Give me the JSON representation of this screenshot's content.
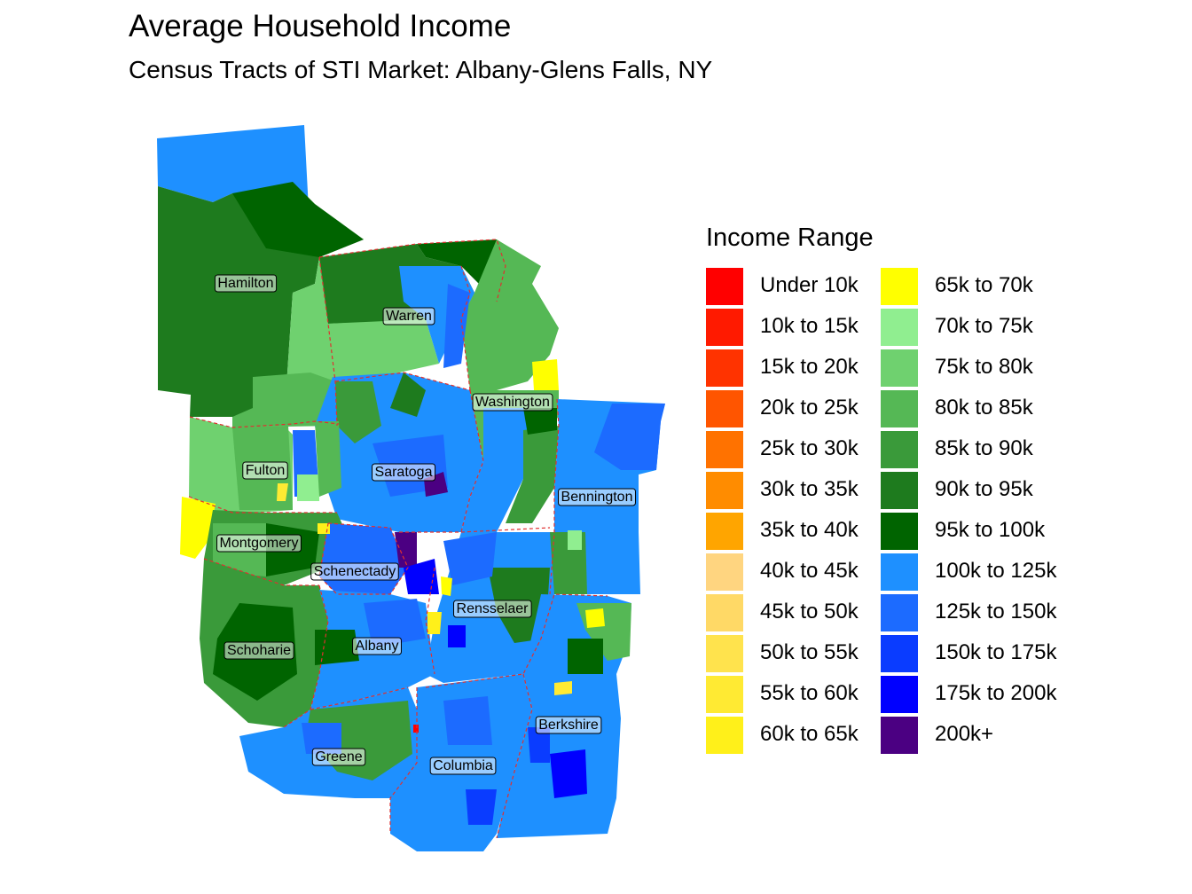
{
  "title": "Average Household Income",
  "subtitle": "Census Tracts of STI Market: Albany-Glens Falls, NY",
  "legend": {
    "title": "Income Range",
    "items": [
      {
        "label": "Under 10k",
        "color": "#ff0000"
      },
      {
        "label": "10k to 15k",
        "color": "#ff1a00"
      },
      {
        "label": "15k to 20k",
        "color": "#ff3300"
      },
      {
        "label": "20k to 25k",
        "color": "#ff5500"
      },
      {
        "label": "25k to 30k",
        "color": "#ff7200"
      },
      {
        "label": "30k to 35k",
        "color": "#ff8c00"
      },
      {
        "label": "35k to 40k",
        "color": "#ffa500"
      },
      {
        "label": "40k to 45k",
        "color": "#ffd580"
      },
      {
        "label": "45k to 50k",
        "color": "#ffd966"
      },
      {
        "label": "50k to 55k",
        "color": "#ffe34d"
      },
      {
        "label": "55k to 60k",
        "color": "#ffea33"
      },
      {
        "label": "60k to 65k",
        "color": "#fff01a"
      },
      {
        "label": "65k to 70k",
        "color": "#ffff00"
      },
      {
        "label": "70k to 75k",
        "color": "#90ee90"
      },
      {
        "label": "75k to 80k",
        "color": "#6fd16f"
      },
      {
        "label": "80k to 85k",
        "color": "#55b855"
      },
      {
        "label": "85k to 90k",
        "color": "#3a9a3a"
      },
      {
        "label": "90k to 95k",
        "color": "#1e7b1e"
      },
      {
        "label": "95k to 100k",
        "color": "#006400"
      },
      {
        "label": "100k to 125k",
        "color": "#1e90ff"
      },
      {
        "label": "125k to 150k",
        "color": "#1c6bff"
      },
      {
        "label": "150k to 175k",
        "color": "#0a3cff"
      },
      {
        "label": "175k to 200k",
        "color": "#0000ff"
      },
      {
        "label": "200k+",
        "color": "#4b0082"
      }
    ]
  },
  "counties": [
    {
      "name": "Hamilton"
    },
    {
      "name": "Warren"
    },
    {
      "name": "Washington"
    },
    {
      "name": "Fulton"
    },
    {
      "name": "Saratoga"
    },
    {
      "name": "Bennington"
    },
    {
      "name": "Montgomery"
    },
    {
      "name": "Schenectady"
    },
    {
      "name": "Rensselaer"
    },
    {
      "name": "Schoharie"
    },
    {
      "name": "Albany"
    },
    {
      "name": "Berkshire"
    },
    {
      "name": "Greene"
    },
    {
      "name": "Columbia"
    }
  ],
  "map_colors": {
    "county_border": "#e03030",
    "label_box_fill": "#ffffff",
    "label_box_stroke": "#000000"
  }
}
